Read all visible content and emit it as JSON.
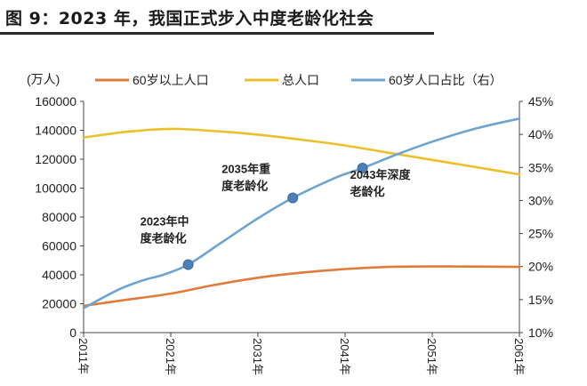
{
  "figure": {
    "title": "图 9：2023 年，我国正式步入中度老龄化社会"
  },
  "chart_data": {
    "type": "line",
    "title": "图 9：2023 年，我国正式步入中度老龄化社会",
    "y_left_unit": "(万人)",
    "ylim_left": [
      0,
      160000
    ],
    "ylim_right": [
      10,
      45
    ],
    "y_left_ticks": [
      "0",
      "20000",
      "40000",
      "60000",
      "80000",
      "100000",
      "120000",
      "140000",
      "160000"
    ],
    "y_right_ticks": [
      "10%",
      "15%",
      "20%",
      "25%",
      "30%",
      "35%",
      "40%",
      "45%"
    ],
    "x_ticks": [
      "2011年",
      "2021年",
      "2031年",
      "2041年",
      "2051年",
      "2061年"
    ],
    "xlim": [
      2011,
      2061
    ],
    "legend_position": "top",
    "colors": {
      "over60": "#E07B39",
      "total": "#EBC02B",
      "share": "#6FA4CF",
      "marker": "#4F7FB8"
    },
    "series": [
      {
        "name": "60岁以上人口",
        "axis": "left",
        "x": [
          2011,
          2015,
          2021,
          2026,
          2031,
          2036,
          2041,
          2046,
          2051,
          2056,
          2061
        ],
        "values": [
          18500,
          22000,
          27000,
          33000,
          38000,
          41500,
          44000,
          45500,
          45800,
          45700,
          45500
        ]
      },
      {
        "name": "总人口",
        "axis": "left",
        "x": [
          2011,
          2016,
          2021,
          2026,
          2031,
          2036,
          2041,
          2046,
          2051,
          2056,
          2061
        ],
        "values": [
          135000,
          139000,
          141000,
          139500,
          137000,
          133500,
          129500,
          124500,
          119500,
          114500,
          109500
        ]
      },
      {
        "name": "60岁人口占比（右）",
        "axis": "right",
        "x": [
          2011,
          2015,
          2018,
          2020,
          2023,
          2027,
          2031,
          2035,
          2040,
          2043,
          2047,
          2051,
          2056,
          2061
        ],
        "values": [
          13.7,
          16.5,
          18.0,
          18.7,
          20.3,
          23.8,
          27.3,
          30.4,
          33.5,
          34.9,
          37.0,
          38.9,
          40.9,
          42.4
        ]
      }
    ],
    "annotations": [
      {
        "x": 2023,
        "y": 20.3,
        "axis": "right",
        "lines": [
          "2023年中",
          "度老龄化"
        ]
      },
      {
        "x": 2035,
        "y": 30.4,
        "axis": "right",
        "lines": [
          "2035年重",
          "度老龄化"
        ]
      },
      {
        "x": 2043,
        "y": 34.9,
        "axis": "right",
        "lines": [
          "2043年深度",
          "老龄化"
        ]
      }
    ]
  }
}
